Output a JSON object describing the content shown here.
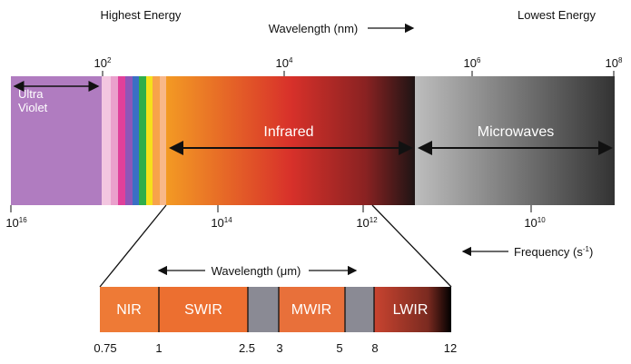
{
  "header": {
    "left": "Highest Energy",
    "center": "Wavelength (nm)",
    "right": "Lowest Energy"
  },
  "wavelength_ticks": [
    {
      "base": "10",
      "exp": "2"
    },
    {
      "base": "10",
      "exp": "4"
    },
    {
      "base": "10",
      "exp": "6"
    },
    {
      "base": "10",
      "exp": "8"
    }
  ],
  "frequency_ticks": [
    {
      "base": "10",
      "exp": "16"
    },
    {
      "base": "10",
      "exp": "14"
    },
    {
      "base": "10",
      "exp": "12"
    },
    {
      "base": "10",
      "exp": "10"
    }
  ],
  "regions": {
    "ultraviolet": [
      "Ultra",
      "Violet"
    ],
    "infrared": "Infrared",
    "microwaves": "Microwaves"
  },
  "frequency_label": {
    "text": "Frequency (s",
    "exp": "-1",
    "close": ")"
  },
  "detail": {
    "axis_label": "Wavelength (μm)",
    "bands": [
      "NIR",
      "SWIR",
      "MWIR",
      "LWIR"
    ],
    "ticks": [
      "0.75",
      "1",
      "2.5",
      "3",
      "5",
      "8",
      "12"
    ]
  }
}
